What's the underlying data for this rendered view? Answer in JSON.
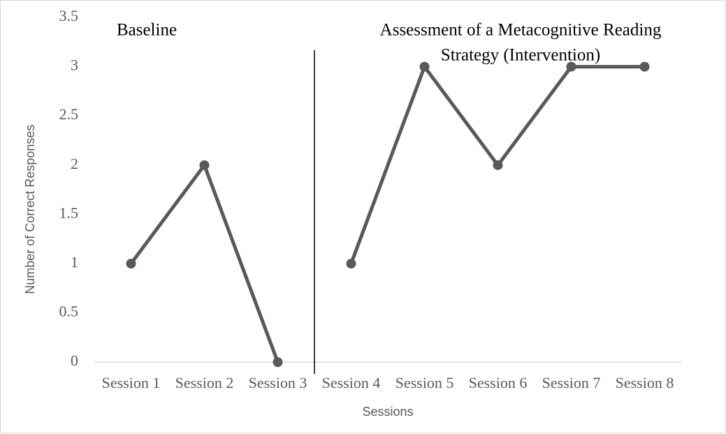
{
  "chart_data": {
    "type": "line",
    "categories": [
      "Session 1",
      "Session 2",
      "Session 3",
      "Session 4",
      "Session 5",
      "Session 6",
      "Session 7",
      "Session 8"
    ],
    "series": [
      {
        "color": "#595959",
        "values": [
          1,
          2,
          0,
          null,
          null,
          null,
          null,
          null
        ]
      },
      {
        "color": "#595959",
        "values": [
          null,
          null,
          null,
          1,
          3,
          2,
          3,
          3
        ]
      }
    ],
    "x_label": "Sessions",
    "y_label": "Number of Correct Responses",
    "annotations": [
      {
        "lines": [
          "Baseline"
        ]
      },
      {
        "lines": [
          "Assessment of a Metacognitive Reading",
          "Strategy (Intervention)"
        ]
      }
    ],
    "ylim": [
      0,
      3.5
    ],
    "yticks": [
      0,
      0.5,
      1,
      1.5,
      2,
      2.5,
      3,
      3.5
    ],
    "grid": false
  }
}
